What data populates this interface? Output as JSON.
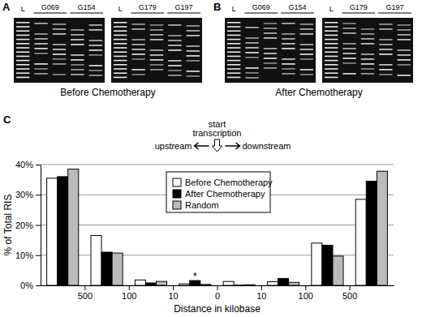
{
  "gels": [
    {
      "panel": "A",
      "caption": "Before Chemotherapy",
      "images": [
        {
          "ladder": "L",
          "samples": [
            "G069",
            "G154"
          ]
        },
        {
          "ladder": "L",
          "samples": [
            "G179",
            "G197"
          ]
        }
      ]
    },
    {
      "panel": "B",
      "caption": "After Chemotherapy",
      "images": [
        {
          "ladder": "L",
          "samples": [
            "G069",
            "G154"
          ]
        },
        {
          "ladder": "L",
          "samples": [
            "G179",
            "G197"
          ]
        }
      ]
    }
  ],
  "chart_data": {
    "type": "bar",
    "panel": "C",
    "x_label": "Distance in kilobase",
    "y_label": "% of Total RIS",
    "annotations": {
      "center": [
        "start",
        "transcription"
      ],
      "left": "upstream",
      "right": "downstream",
      "marks": [
        {
          "text": "*",
          "category": 3,
          "series": 1
        }
      ]
    },
    "categories": [
      null,
      null,
      null,
      null,
      null,
      null,
      null,
      null
    ],
    "series": [
      {
        "name": "Before Chemotherapy",
        "color": "#ffffff",
        "values": [
          35.5,
          16.5,
          1.8,
          0.5,
          1.3,
          1.2,
          14.0,
          28.5
        ]
      },
      {
        "name": "After Chemotherapy",
        "color": "#000000",
        "values": [
          36.0,
          11.0,
          0.8,
          1.6,
          0.1,
          2.3,
          13.3,
          34.5
        ]
      },
      {
        "name": "Random",
        "color": "#bbbbbb",
        "values": [
          38.5,
          10.7,
          1.3,
          0.3,
          0.2,
          1.0,
          9.7,
          37.8
        ]
      }
    ],
    "xlim": [
      0,
      8
    ],
    "xticks": [
      {
        "value": 1,
        "label": "500"
      },
      {
        "value": 2,
        "label": "100"
      },
      {
        "value": 3,
        "label": "10"
      },
      {
        "value": 4,
        "label": "0"
      },
      {
        "value": 5,
        "label": "10"
      },
      {
        "value": 6,
        "label": "100"
      },
      {
        "value": 7,
        "label": "500"
      }
    ],
    "ylim": [
      0,
      40
    ],
    "yticks": [
      {
        "value": 0,
        "label": "0%"
      },
      {
        "value": 10,
        "label": "10%"
      },
      {
        "value": 20,
        "label": "20%"
      },
      {
        "value": 30,
        "label": "30%"
      },
      {
        "value": 40,
        "label": "40%"
      }
    ],
    "grid": true,
    "legend": "top"
  }
}
